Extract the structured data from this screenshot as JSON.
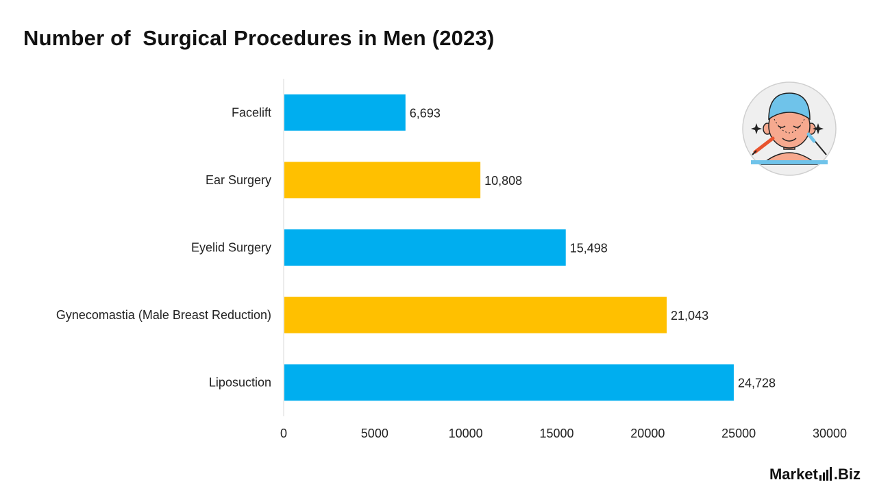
{
  "title": "Number of  Surgical Procedures in Men (2023)",
  "brand": {
    "name_a": "Market",
    "name_b": ".Biz"
  },
  "illustration": {
    "icon": "male-cosmetic-surgery-face-icon"
  },
  "colors": {
    "blue": "#00AEEF",
    "yellow": "#FFC000",
    "axis": "#d9d9d9",
    "text": "#222222"
  },
  "chart_data": {
    "type": "bar",
    "orientation": "horizontal",
    "categories": [
      "Facelift",
      "Ear Surgery",
      "Eyelid Surgery",
      "Gynecomastia (Male Breast Reduction)",
      "Liposuction"
    ],
    "values": [
      6693,
      10808,
      15498,
      21043,
      24728
    ],
    "value_labels": [
      "6,693",
      "10,808",
      "15,498",
      "21,043",
      "24,728"
    ],
    "bar_colors": [
      "#00AEEF",
      "#FFC000",
      "#00AEEF",
      "#FFC000",
      "#00AEEF"
    ],
    "xlim": [
      0,
      30000
    ],
    "xticks": [
      0,
      5000,
      10000,
      15000,
      20000,
      25000,
      30000
    ],
    "xtick_labels": [
      "0",
      "5000",
      "10000",
      "15000",
      "20000",
      "25000",
      "30000"
    ],
    "grid": false,
    "legend": "none"
  }
}
